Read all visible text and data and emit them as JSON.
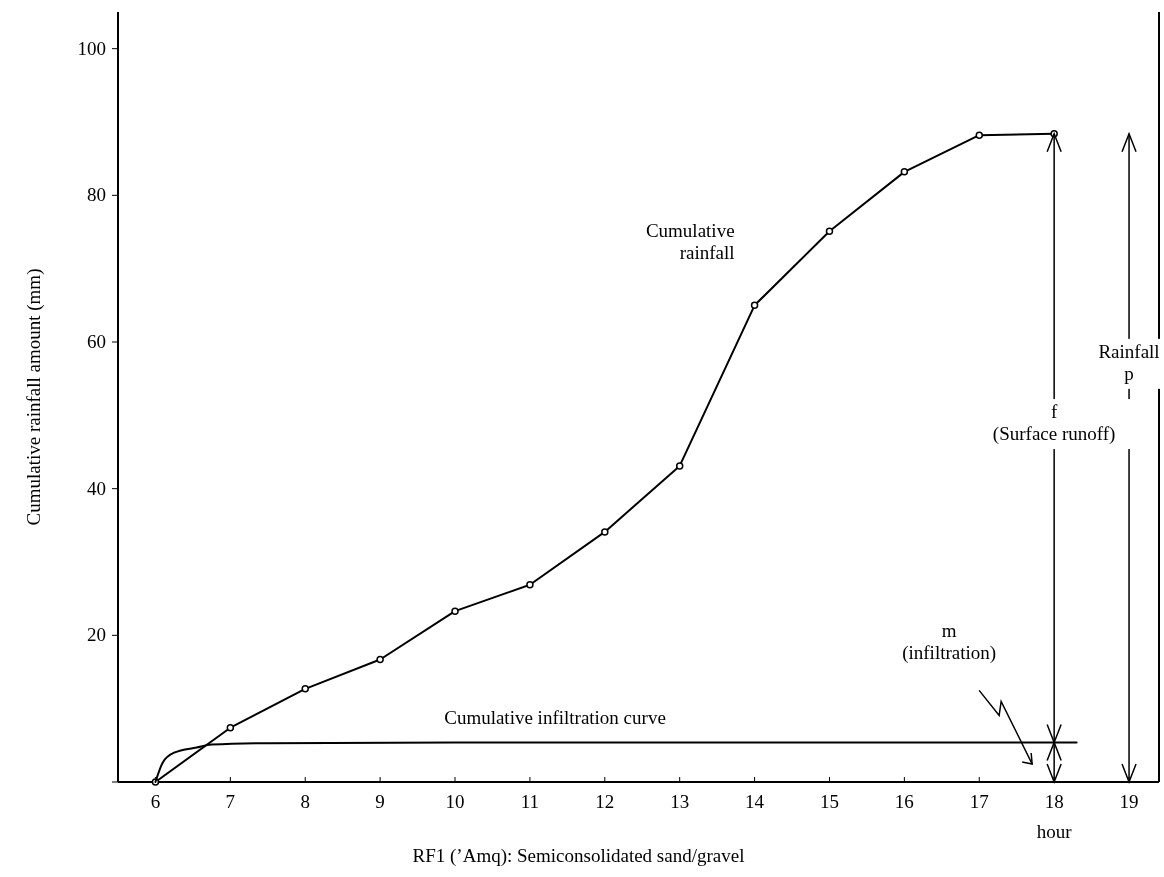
{
  "chart_data": {
    "type": "line",
    "xlabel": "hour",
    "ylabel": "Cumulative rainfall amount (mm)",
    "xlim": [
      5.5,
      19.4
    ],
    "ylim": [
      0,
      105
    ],
    "xticks": [
      6,
      7,
      8,
      9,
      10,
      11,
      12,
      13,
      14,
      15,
      16,
      17,
      18,
      19
    ],
    "yticks": [
      {
        "value": 0,
        "label": null
      },
      20,
      40,
      60,
      80,
      100
    ],
    "series": [
      {
        "name": "Cumulative\nrainfall",
        "color": "#000000",
        "marker": "circle",
        "x": [
          6,
          7,
          8,
          9,
          10,
          11,
          12,
          13,
          14,
          15,
          16,
          17,
          18
        ],
        "values": [
          0,
          7.4,
          12.7,
          16.7,
          23.3,
          26.9,
          34.1,
          43.1,
          65,
          75.1,
          83.2,
          88.2,
          88.4
        ]
      },
      {
        "name": "Cumulative infiltration curve",
        "color": "#000000",
        "marker": "none",
        "x": [
          6,
          6.1,
          6.25,
          6.55,
          6.75,
          7.5,
          10,
          14,
          18.3
        ],
        "values": [
          0,
          2.7,
          4,
          4.7,
          5.1,
          5.3,
          5.4,
          5.4,
          5.4
        ]
      }
    ],
    "annotations": [
      "f\n(Surface runoff)",
      "Rainfall\np",
      "m\n(infiltration)",
      "RF1 (’Amq): Semiconsolidated sand/gravel"
    ]
  }
}
